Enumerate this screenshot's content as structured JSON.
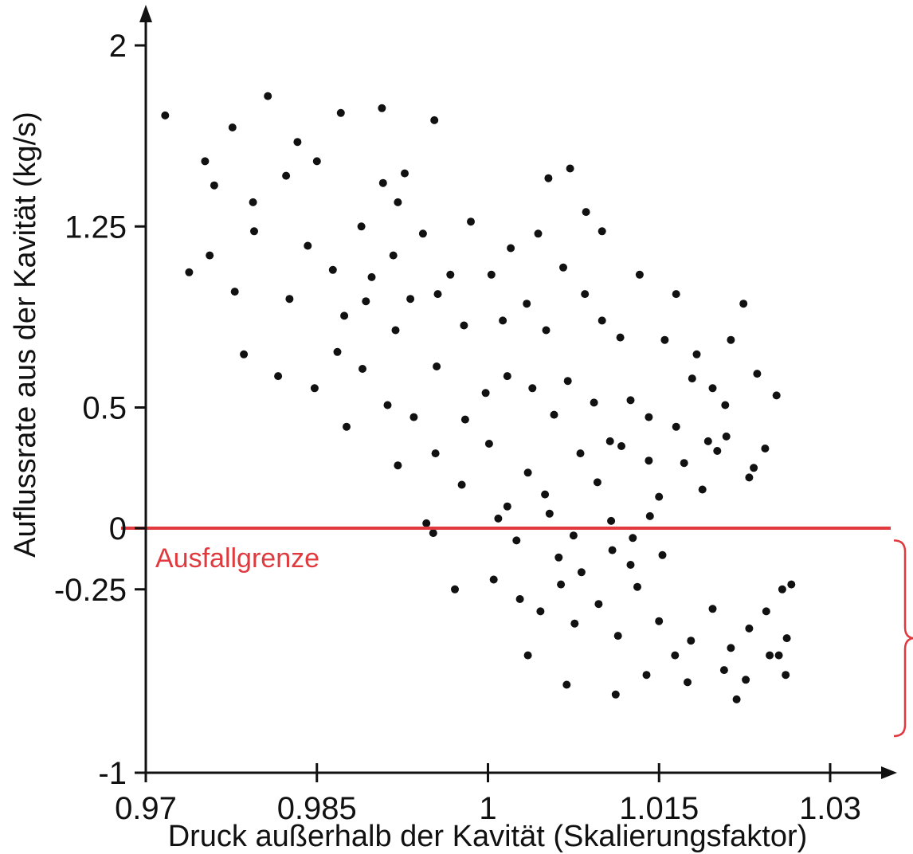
{
  "chart_data": {
    "type": "scatter",
    "title": "",
    "xlabel": "Druck außerhalb der Kavität (Skalierungsfaktor)",
    "ylabel": "Auflussrate aus der Kavität (kg/s)",
    "xlim": [
      0.97,
      1.035
    ],
    "ylim": [
      -1,
      2.2
    ],
    "x_ticks": [
      0.97,
      0.985,
      1,
      1.015,
      1.03
    ],
    "x_tick_labels": [
      "0.97",
      "0.985",
      "1",
      "1.015",
      "1.03"
    ],
    "y_ticks": [
      -1,
      -0.25,
      0,
      0.5,
      1.25,
      2
    ],
    "y_tick_labels": [
      "-1",
      "-0.25",
      "0",
      "0.5",
      "1.25",
      "2"
    ],
    "grid": false,
    "legend": false,
    "colors": {
      "points": "#111111",
      "axes": "#111111",
      "threshold": "#e0393e"
    },
    "threshold": {
      "y": 0,
      "label": "Ausfallgrenze"
    },
    "bracket": {
      "y_range": [
        -0.85,
        -0.05
      ],
      "side": "right"
    },
    "series": [
      {
        "points": [
          [
            0.9717,
            1.71
          ],
          [
            0.9752,
            1.52
          ],
          [
            0.9776,
            1.66
          ],
          [
            0.9807,
            1.79
          ],
          [
            0.9833,
            1.6
          ],
          [
            0.985,
            1.52
          ],
          [
            0.9871,
            1.72
          ],
          [
            0.9907,
            1.74
          ],
          [
            0.9908,
            1.43
          ],
          [
            0.9927,
            1.47
          ],
          [
            0.9953,
            1.69
          ],
          [
            0.9889,
            1.25
          ],
          [
            0.9921,
            1.35
          ],
          [
            1.0053,
            1.45
          ],
          [
            1.0072,
            1.49
          ],
          [
            0.976,
            1.42
          ],
          [
            0.9794,
            1.35
          ],
          [
            0.9795,
            1.23
          ],
          [
            0.9823,
            1.46
          ],
          [
            0.9842,
            1.17
          ],
          [
            0.9864,
            1.07
          ],
          [
            0.9898,
            1.04
          ],
          [
            0.9917,
            1.13
          ],
          [
            0.9943,
            1.22
          ],
          [
            0.9967,
            1.05
          ],
          [
            0.9985,
            1.27
          ],
          [
            1.0003,
            1.05
          ],
          [
            1.002,
            1.16
          ],
          [
            1.0044,
            1.22
          ],
          [
            1.0066,
            1.08
          ],
          [
            1.0086,
            1.31
          ],
          [
            1.01,
            1.23
          ],
          [
            0.9738,
            1.06
          ],
          [
            0.9756,
            1.13
          ],
          [
            0.9778,
            0.98
          ],
          [
            0.9826,
            0.95
          ],
          [
            0.9874,
            0.88
          ],
          [
            0.9893,
            0.94
          ],
          [
            0.9919,
            0.82
          ],
          [
            0.9932,
            0.95
          ],
          [
            0.9956,
            0.97
          ],
          [
            0.9979,
            0.84
          ],
          [
            1.0013,
            0.86
          ],
          [
            1.0034,
            0.93
          ],
          [
            1.0051,
            0.82
          ],
          [
            1.0085,
            0.97
          ],
          [
            1.01,
            0.86
          ],
          [
            1.0116,
            0.79
          ],
          [
            1.0133,
            1.05
          ],
          [
            1.0155,
            0.78
          ],
          [
            1.0165,
            0.97
          ],
          [
            1.0183,
            0.72
          ],
          [
            1.0197,
            0.58
          ],
          [
            1.0208,
            0.51
          ],
          [
            1.0213,
            0.78
          ],
          [
            1.0224,
            0.93
          ],
          [
            1.0236,
            0.64
          ],
          [
            1.0243,
            0.33
          ],
          [
            1.0253,
            0.55
          ],
          [
            0.9786,
            0.72
          ],
          [
            0.9816,
            0.63
          ],
          [
            0.9848,
            0.58
          ],
          [
            0.9868,
            0.73
          ],
          [
            0.989,
            0.66
          ],
          [
            0.9912,
            0.51
          ],
          [
            0.9935,
            0.46
          ],
          [
            0.9955,
            0.67
          ],
          [
            0.998,
            0.45
          ],
          [
            0.9998,
            0.56
          ],
          [
            1.0017,
            0.63
          ],
          [
            1.0039,
            0.58
          ],
          [
            1.0058,
            0.47
          ],
          [
            1.007,
            0.61
          ],
          [
            1.0093,
            0.52
          ],
          [
            1.0107,
            0.36
          ],
          [
            1.0125,
            0.53
          ],
          [
            1.0141,
            0.46
          ],
          [
            1.0165,
            0.42
          ],
          [
            1.0179,
            0.62
          ],
          [
            1.0193,
            0.36
          ],
          [
            1.0209,
            0.38
          ],
          [
            1.0229,
            0.21
          ],
          [
            0.9876,
            0.42
          ],
          [
            0.9921,
            0.26
          ],
          [
            0.9954,
            0.31
          ],
          [
            0.9977,
            0.18
          ],
          [
            1.0001,
            0.35
          ],
          [
            1.0017,
            0.09
          ],
          [
            1.0035,
            0.23
          ],
          [
            1.005,
            0.14
          ],
          [
            1.0081,
            0.31
          ],
          [
            1.0096,
            0.19
          ],
          [
            1.0117,
            0.34
          ],
          [
            1.0141,
            0.28
          ],
          [
            1.015,
            0.13
          ],
          [
            1.0172,
            0.27
          ],
          [
            1.0188,
            0.16
          ],
          [
            1.0201,
            0.32
          ],
          [
            1.0233,
            0.25
          ],
          [
            0.9946,
            0.02
          ],
          [
            0.9952,
            -0.02
          ],
          [
            1.0009,
            0.04
          ],
          [
            1.0025,
            -0.05
          ],
          [
            1.0054,
            0.06
          ],
          [
            1.0075,
            -0.03
          ],
          [
            1.0108,
            0.03
          ],
          [
            1.0127,
            -0.04
          ],
          [
            1.0142,
            0.05
          ],
          [
            0.9971,
            -0.25
          ],
          [
            1.0005,
            -0.21
          ],
          [
            1.0028,
            -0.29
          ],
          [
            1.0046,
            -0.34
          ],
          [
            1.0064,
            -0.23
          ],
          [
            1.0076,
            -0.39
          ],
          [
            1.0097,
            -0.31
          ],
          [
            1.0114,
            -0.44
          ],
          [
            1.0131,
            -0.24
          ],
          [
            1.015,
            -0.38
          ],
          [
            1.0164,
            -0.52
          ],
          [
            1.0178,
            -0.46
          ],
          [
            1.0197,
            -0.33
          ],
          [
            1.0213,
            -0.49
          ],
          [
            1.0229,
            -0.41
          ],
          [
            1.0244,
            -0.34
          ],
          [
            1.0258,
            -0.25
          ],
          [
            1.0262,
            -0.45
          ],
          [
            1.0266,
            -0.23
          ],
          [
            1.0247,
            -0.52
          ],
          [
            1.0226,
            -0.62
          ],
          [
            1.0207,
            -0.58
          ],
          [
            1.0175,
            -0.63
          ],
          [
            1.0139,
            -0.6
          ],
          [
            1.0112,
            -0.68
          ],
          [
            1.0069,
            -0.64
          ],
          [
            1.0035,
            -0.52
          ],
          [
            1.0082,
            -0.18
          ],
          [
            1.0125,
            -0.15
          ],
          [
            1.0153,
            -0.11
          ],
          [
            1.0109,
            -0.09
          ],
          [
            1.0062,
            -0.12
          ],
          [
            1.0218,
            -0.7
          ],
          [
            1.0255,
            -0.52
          ],
          [
            1.0261,
            -0.6
          ]
        ]
      }
    ]
  }
}
